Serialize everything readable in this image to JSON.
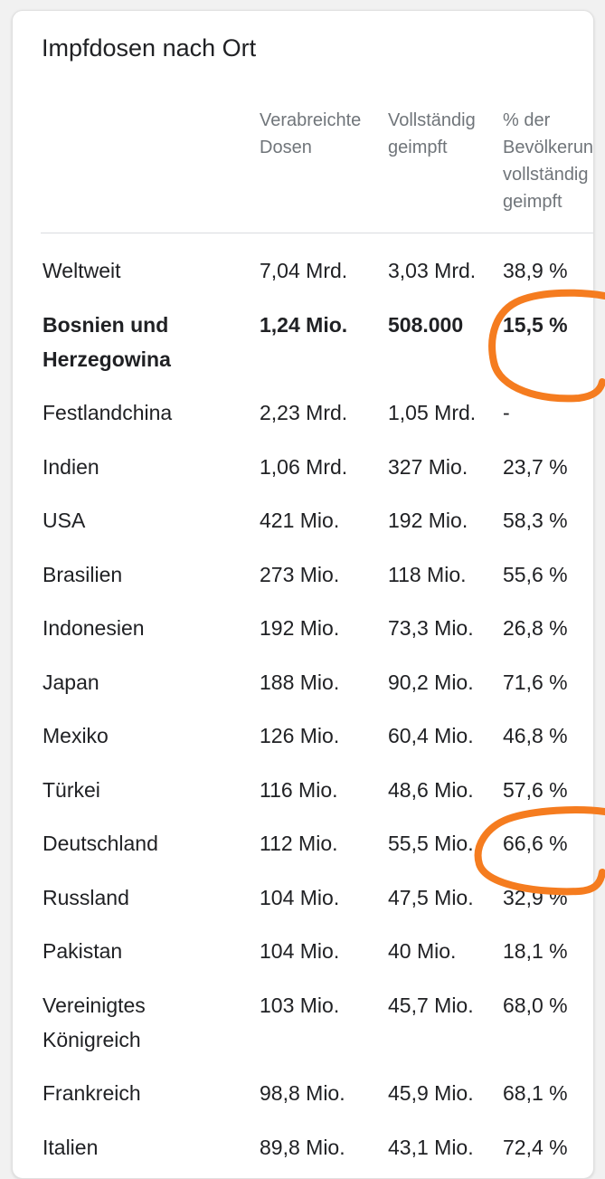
{
  "card": {
    "title": "Impfdosen nach Ort"
  },
  "table": {
    "headers": {
      "location": "",
      "doses": [
        "Verabreichte",
        "Dosen"
      ],
      "fully": [
        "Vollständig",
        "geimpft"
      ],
      "percent": [
        "% der",
        "Bevölkerung",
        "vollständig",
        "geimpft"
      ]
    },
    "rows": [
      {
        "name": [
          "Weltweit"
        ],
        "doses": "7,04 Mrd.",
        "fully": "3,03 Mrd.",
        "percent": "38,9 %",
        "highlighted": false
      },
      {
        "name": [
          "Bosnien und",
          "Herzegowina"
        ],
        "doses": "1,24 Mio.",
        "fully": "508.000",
        "percent": "15,5 %",
        "highlighted": true
      },
      {
        "name": [
          "Festlandchina"
        ],
        "doses": "2,23 Mrd.",
        "fully": "1,05 Mrd.",
        "percent": "-",
        "highlighted": false
      },
      {
        "name": [
          "Indien"
        ],
        "doses": "1,06 Mrd.",
        "fully": "327 Mio.",
        "percent": "23,7 %",
        "highlighted": false
      },
      {
        "name": [
          "USA"
        ],
        "doses": "421 Mio.",
        "fully": "192 Mio.",
        "percent": "58,3 %",
        "highlighted": false
      },
      {
        "name": [
          "Brasilien"
        ],
        "doses": "273 Mio.",
        "fully": "118 Mio.",
        "percent": "55,6 %",
        "highlighted": false
      },
      {
        "name": [
          "Indonesien"
        ],
        "doses": "192 Mio.",
        "fully": "73,3 Mio.",
        "percent": "26,8 %",
        "highlighted": false
      },
      {
        "name": [
          "Japan"
        ],
        "doses": "188 Mio.",
        "fully": "90,2 Mio.",
        "percent": "71,6 %",
        "highlighted": false
      },
      {
        "name": [
          "Mexiko"
        ],
        "doses": "126 Mio.",
        "fully": "60,4 Mio.",
        "percent": "46,8 %",
        "highlighted": false
      },
      {
        "name": [
          "Türkei"
        ],
        "doses": "116 Mio.",
        "fully": "48,6 Mio.",
        "percent": "57,6 %",
        "highlighted": false
      },
      {
        "name": [
          "Deutschland"
        ],
        "doses": "112 Mio.",
        "fully": "55,5 Mio.",
        "percent": "66,6 %",
        "highlighted": false
      },
      {
        "name": [
          "Russland"
        ],
        "doses": "104 Mio.",
        "fully": "47,5 Mio.",
        "percent": "32,9 %",
        "highlighted": false
      },
      {
        "name": [
          "Pakistan"
        ],
        "doses": "104 Mio.",
        "fully": "40 Mio.",
        "percent": "18,1 %",
        "highlighted": false
      },
      {
        "name": [
          "Vereinigtes",
          "Königreich"
        ],
        "doses": "103 Mio.",
        "fully": "45,7 Mio.",
        "percent": "68,0 %",
        "highlighted": false
      },
      {
        "name": [
          "Frankreich"
        ],
        "doses": "98,8 Mio.",
        "fully": "45,9 Mio.",
        "percent": "68,1 %",
        "highlighted": false
      },
      {
        "name": [
          "Italien"
        ],
        "doses": "89,8 Mio.",
        "fully": "43,1 Mio.",
        "percent": "72,4 %",
        "highlighted": false
      }
    ]
  },
  "annotations": {
    "marker_color": "#f57c1f",
    "circled_values": [
      "15,5 %",
      "66,6 %"
    ]
  },
  "colors": {
    "background": "#f1f1f1",
    "card": "#ffffff",
    "text": "#202124",
    "muted": "#70757a",
    "divider": "#dadce0"
  }
}
